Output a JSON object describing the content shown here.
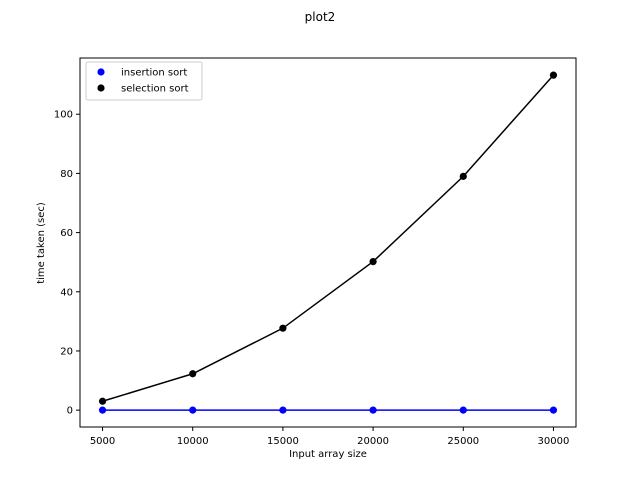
{
  "chart_data": {
    "type": "line",
    "title": "plot2",
    "xlabel": "Input array size",
    "ylabel": "time taken (sec)",
    "x": [
      5000,
      10000,
      15000,
      20000,
      25000,
      30000
    ],
    "xlim": [
      3750,
      31250
    ],
    "ylim": [
      -5.7,
      119.0
    ],
    "xticks": [
      5000,
      10000,
      15000,
      20000,
      25000,
      30000
    ],
    "yticks": [
      0,
      20,
      40,
      60,
      80,
      100
    ],
    "grid": false,
    "legend": "top-left",
    "series": [
      {
        "name": "insertion sort",
        "color": "#0000ff",
        "marker": "circle",
        "values": [
          0.0,
          0.0,
          0.0,
          0.0,
          0.0,
          0.0
        ]
      },
      {
        "name": "selection sort",
        "color": "#000000",
        "marker": "circle",
        "values": [
          3.0,
          12.3,
          27.7,
          50.2,
          79.0,
          113.2
        ]
      }
    ]
  }
}
